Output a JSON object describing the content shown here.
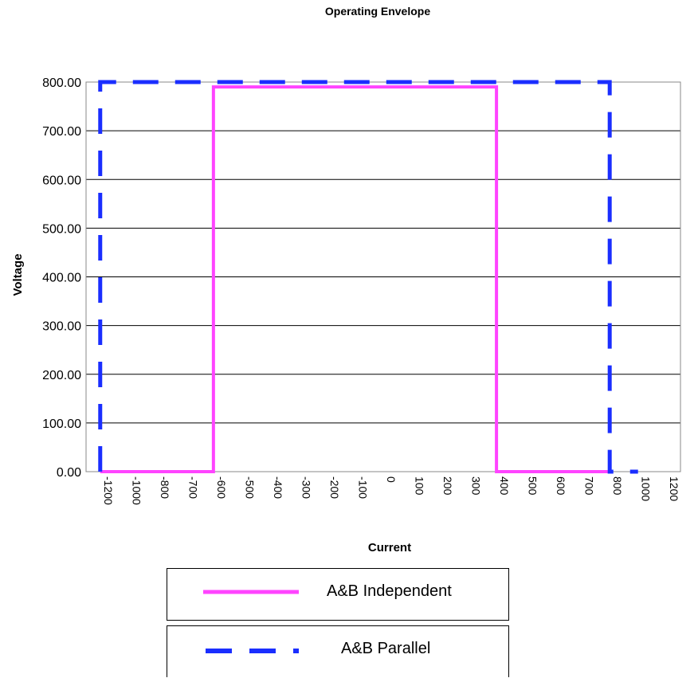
{
  "chart_data": {
    "type": "line",
    "title": "Operating Envelope",
    "xlabel": "Current",
    "ylabel": "Voltage",
    "ylim": [
      0,
      800
    ],
    "yticks": [
      "0.00",
      "100.00",
      "200.00",
      "300.00",
      "400.00",
      "500.00",
      "600.00",
      "700.00",
      "800.00"
    ],
    "categories": [
      "-1200",
      "-1000",
      "-800",
      "-700",
      "-600",
      "-500",
      "-400",
      "-300",
      "-200",
      "-100",
      "0",
      "100",
      "200",
      "300",
      "400",
      "500",
      "600",
      "700",
      "800",
      "1000",
      "1200"
    ],
    "grid": "horizontal",
    "legend_position": "bottom",
    "series": [
      {
        "name": "A&B Independent",
        "color": "#ff44ff",
        "style": "solid",
        "points": [
          {
            "x": "-1200",
            "y": 0
          },
          {
            "x": "-600",
            "y": 0
          },
          {
            "x": "-600",
            "y": 790
          },
          {
            "x": "400",
            "y": 790
          },
          {
            "x": "400",
            "y": 0
          },
          {
            "x": "800",
            "y": 0
          }
        ]
      },
      {
        "name": "A&B Parallel",
        "color": "#1a2eff",
        "style": "dashed",
        "points": [
          {
            "x": "-1200",
            "y": 0
          },
          {
            "x": "-1200",
            "y": 800
          },
          {
            "x": "800",
            "y": 800
          },
          {
            "x": "800",
            "y": 0
          },
          {
            "x": "1000",
            "y": 0
          }
        ]
      }
    ]
  }
}
